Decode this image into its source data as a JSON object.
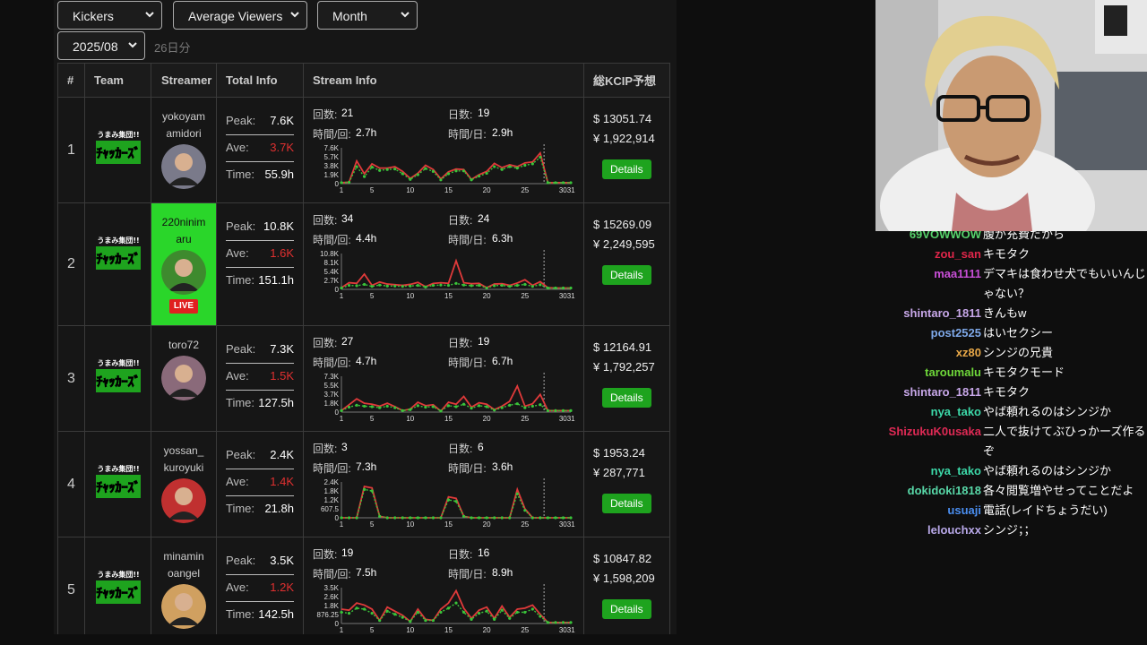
{
  "filters": {
    "group": "Kickers",
    "metric": "Average Viewers",
    "period": "Month",
    "month": "2025/08",
    "days": "26日分"
  },
  "table": {
    "headers": [
      "#",
      "Team",
      "Streamer",
      "Total Info",
      "Stream Info",
      "総KCIP予想"
    ],
    "labels": {
      "peak": "Peak:",
      "ave": "Ave:",
      "time": "Time:",
      "count": "回数:",
      "days": "日数:",
      "per_stream": "時間/回:",
      "per_day": "時間/日:",
      "details": "Details",
      "live": "LIVE"
    },
    "rows": [
      {
        "rank": "1",
        "name1": "yokoyam",
        "name2": "amidori",
        "peak": "7.6K",
        "ave": "3.7K",
        "time": "55.9h",
        "count": "21",
        "days": "19",
        "per_stream": "2.7h",
        "per_day": "2.9h",
        "usd": "$ 13051.74",
        "jpy": "¥ 1,922,914",
        "chart": {
          "yticks": [
            "7.6K",
            "5.7K",
            "3.8K",
            "1.9K",
            "0"
          ],
          "ymax": 7.6,
          "red": [
            0.2,
            0.3,
            4.8,
            2.1,
            4.2,
            3.3,
            3.3,
            3.6,
            2.6,
            1.1,
            2.2,
            3.9,
            3.0,
            1.0,
            2.5,
            3.1,
            3.0,
            0.9,
            1.9,
            2.6,
            4.3,
            3.4,
            4.0,
            3.6,
            4.4,
            4.6,
            6.5,
            0.2,
            0.2,
            0.2,
            0.2
          ],
          "green": [
            0.2,
            0.3,
            3.6,
            1.5,
            3.5,
            2.8,
            3.0,
            3.1,
            2.1,
            0.9,
            1.9,
            3.2,
            2.6,
            0.8,
            2.1,
            2.7,
            2.7,
            0.8,
            1.6,
            2.2,
            3.6,
            3.0,
            3.6,
            3.3,
            3.9,
            4.2,
            5.6,
            0.2,
            0.2,
            0.2,
            0.2
          ]
        }
      },
      {
        "rank": "2",
        "name1": "220ninim",
        "name2": "aru",
        "live": true,
        "peak": "10.8K",
        "ave": "1.6K",
        "time": "151.1h",
        "count": "34",
        "days": "24",
        "per_stream": "4.4h",
        "per_day": "6.3h",
        "usd": "$ 15269.09",
        "jpy": "¥ 2,249,595",
        "chart": {
          "yticks": [
            "10.8K",
            "8.1K",
            "5.4K",
            "2.7K",
            "0"
          ],
          "ymax": 10.8,
          "red": [
            0.5,
            2.0,
            1.8,
            4.6,
            1.2,
            2.2,
            1.6,
            1.4,
            1.2,
            1.5,
            2.1,
            0.8,
            1.8,
            2.0,
            1.8,
            8.6,
            2.0,
            1.7,
            1.8,
            0.5,
            1.6,
            1.7,
            1.2,
            1.9,
            2.9,
            1.2,
            2.3,
            0.5,
            0.4,
            0.4,
            0.4
          ],
          "green": [
            0.4,
            1.2,
            1.1,
            1.5,
            0.9,
            1.3,
            1.0,
            1.0,
            0.9,
            1.0,
            1.2,
            0.7,
            1.2,
            1.3,
            1.2,
            1.8,
            1.3,
            1.1,
            1.2,
            0.4,
            1.1,
            1.2,
            0.9,
            1.2,
            1.5,
            0.9,
            1.4,
            0.4,
            0.4,
            0.4,
            0.4
          ]
        }
      },
      {
        "rank": "3",
        "name1": "toro72",
        "name2": "",
        "peak": "7.3K",
        "ave": "1.5K",
        "time": "127.5h",
        "count": "27",
        "days": "19",
        "per_stream": "4.7h",
        "per_day": "6.7h",
        "usd": "$ 12164.91",
        "jpy": "¥ 1,792,257",
        "chart": {
          "yticks": [
            "7.3K",
            "5.5K",
            "3.7K",
            "1.8K",
            "0"
          ],
          "ymax": 7.3,
          "red": [
            0.3,
            1.5,
            2.7,
            1.8,
            1.6,
            1.2,
            1.8,
            1.1,
            0.3,
            0.6,
            2.0,
            1.3,
            1.5,
            0.2,
            2.0,
            1.6,
            3.2,
            1.0,
            1.9,
            1.6,
            0.5,
            1.2,
            2.2,
            5.3,
            1.2,
            1.7,
            3.6,
            0.3,
            0.3,
            0.3,
            0.3
          ],
          "green": [
            0.3,
            1.0,
            1.4,
            1.2,
            1.1,
            0.9,
            1.2,
            0.9,
            0.3,
            0.5,
            1.3,
            1.0,
            1.1,
            0.2,
            1.3,
            1.1,
            1.6,
            0.8,
            1.3,
            1.1,
            0.4,
            0.9,
            1.4,
            1.7,
            0.9,
            1.2,
            1.5,
            0.3,
            0.3,
            0.3,
            0.3
          ]
        }
      },
      {
        "rank": "4",
        "name1": "yossan_",
        "name2": "kuroyuki",
        "peak": "2.4K",
        "ave": "1.4K",
        "time": "21.8h",
        "count": "3",
        "days": "6",
        "per_stream": "7.3h",
        "per_day": "3.6h",
        "usd": "$ 1953.24",
        "jpy": "¥ 287,771",
        "chart": {
          "yticks": [
            "2.4K",
            "1.8K",
            "1.2K",
            "607.5",
            "0"
          ],
          "ymax": 2.4,
          "red": [
            0,
            0,
            0,
            2.1,
            2.0,
            0.1,
            0,
            0,
            0,
            0,
            0,
            0,
            0,
            0,
            1.4,
            1.3,
            0.1,
            0,
            0,
            0,
            0,
            0,
            0,
            1.9,
            0.6,
            0,
            0,
            0,
            0,
            0,
            0
          ],
          "green": [
            0,
            0,
            0,
            1.9,
            1.8,
            0.1,
            0,
            0,
            0,
            0,
            0,
            0,
            0,
            0,
            1.2,
            1.1,
            0.1,
            0,
            0,
            0,
            0,
            0,
            0,
            1.6,
            0.5,
            0,
            0,
            0,
            0,
            0,
            0
          ]
        }
      },
      {
        "rank": "5",
        "name1": "minamin",
        "name2": "oangel",
        "peak": "3.5K",
        "ave": "1.2K",
        "time": "142.5h",
        "count": "19",
        "days": "16",
        "per_stream": "7.5h",
        "per_day": "8.9h",
        "usd": "$ 10847.82",
        "jpy": "¥ 1,598,209",
        "chart": {
          "yticks": [
            "3.5K",
            "2.6K",
            "1.8K",
            "876.25",
            "0"
          ],
          "ymax": 3.5,
          "red": [
            1.4,
            1.3,
            2.0,
            1.8,
            1.4,
            0.3,
            1.6,
            1.2,
            0.8,
            0.2,
            1.4,
            0.4,
            0.3,
            1.4,
            2.0,
            3.2,
            1.5,
            0.5,
            1.3,
            1.6,
            0.5,
            1.7,
            0.6,
            1.4,
            1.5,
            1.8,
            0.9,
            0.1,
            0.1,
            0.1,
            0.1
          ],
          "green": [
            1.1,
            1.0,
            1.5,
            1.4,
            1.0,
            0.3,
            1.2,
            0.9,
            0.6,
            0.2,
            1.1,
            0.3,
            0.3,
            1.1,
            1.5,
            2.0,
            1.1,
            0.4,
            1.0,
            1.2,
            0.4,
            1.3,
            0.5,
            1.1,
            1.1,
            1.4,
            0.7,
            0.1,
            0.1,
            0.1,
            0.1
          ]
        }
      }
    ],
    "xticks": [
      "1",
      "5",
      "10",
      "15",
      "20",
      "25",
      "3031"
    ]
  },
  "chat": [
    {
      "user": "69VOWWOW",
      "text": "腹が充費だから",
      "color": "#56d26b"
    },
    {
      "user": "zou_san",
      "text": "キモタク",
      "color": "#e0264a"
    },
    {
      "user": "maa1111",
      "text": "デマキは食わせ犬でもいいんじゃない？",
      "color": "#c94fd8"
    },
    {
      "user": "shintaro_1811",
      "text": "きんもw",
      "color": "#c7a7e8"
    },
    {
      "user": "post2525",
      "text": "はいセクシー",
      "color": "#7ea8e8"
    },
    {
      "user": "xz80",
      "text": "シンジの兄貴",
      "color": "#e8a848"
    },
    {
      "user": "taroumalu",
      "text": "キモタクモード",
      "color": "#6fd83a"
    },
    {
      "user": "shintaro_1811",
      "text": "キモタク",
      "color": "#c7a7e8"
    },
    {
      "user": "nya_tako",
      "text": "やば頼れるのはシンジか",
      "color": "#3cd8a8"
    },
    {
      "user": "ShizukuK0usaka",
      "text": "二人で抜けてぶひっかーズ作るぞ",
      "color": "#e02a55"
    },
    {
      "user": "nya_tako",
      "text": "やば頼れるのはシンジか",
      "color": "#3cd8a8"
    },
    {
      "user": "dokidoki1818",
      "text": "各々閲覧増やせってことだよ",
      "color": "#58d8a8"
    },
    {
      "user": "usuaji",
      "text": "電話(レイドちょうだい)",
      "color": "#4a8ef0"
    },
    {
      "user": "lelouchxx",
      "text": "シンジ；；",
      "color": "#b8a8e8"
    }
  ]
}
